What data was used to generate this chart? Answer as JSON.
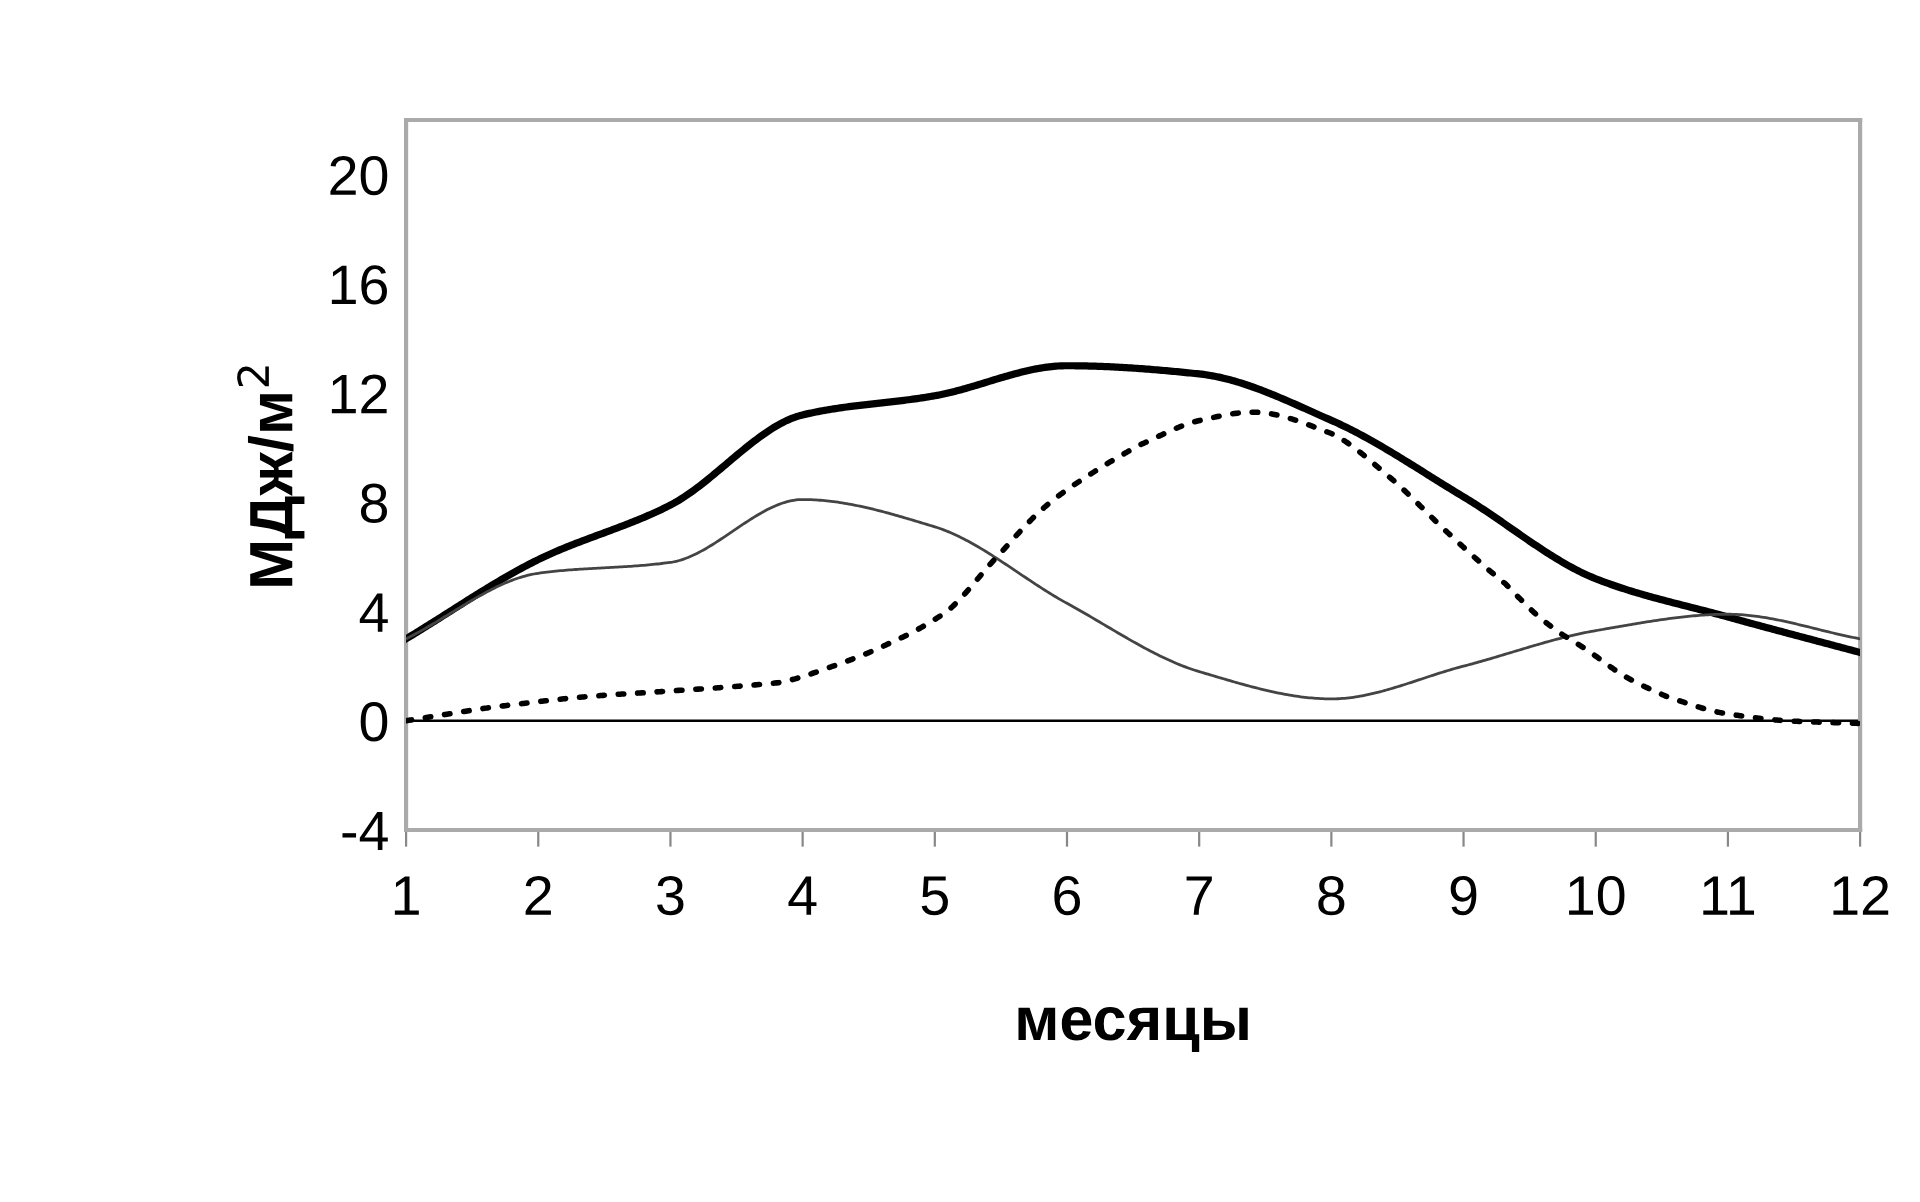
{
  "chart_data": {
    "type": "line",
    "xlabel": "месяцы",
    "ylabel": "МДж/м$^{2}$",
    "x": [
      1,
      2,
      3,
      4,
      5,
      6,
      7,
      8,
      9,
      10,
      11,
      12
    ],
    "series": [
      {
        "color": "#000000",
        "line_style": "solid",
        "values": [
          3.0,
          5.9,
          7.9,
          11.2,
          11.9,
          13.0,
          12.7,
          11.0,
          8.2,
          5.2,
          3.8,
          2.5
        ]
      },
      {
        "color": "#444444",
        "line_style": "solid",
        "values": [
          3.0,
          5.4,
          5.8,
          8.1,
          7.1,
          4.3,
          1.8,
          0.8,
          2.0,
          3.3,
          3.9,
          3.0
        ]
      },
      {
        "color": "#000000",
        "line_style": "dotted",
        "x": [
          1,
          1.66,
          2.42,
          3.02,
          3.83,
          4.23,
          4.64,
          5.09,
          5.49,
          5.85,
          6.2,
          6.55,
          7.01,
          7.41,
          8.01,
          8.47,
          8.9,
          9.32,
          9.65,
          9.93,
          10.23,
          10.53,
          10.94,
          11.44,
          12
        ],
        "values": [
          0.0,
          0.5,
          0.9,
          1.1,
          1.4,
          2.0,
          2.8,
          4.0,
          6.1,
          7.9,
          9.1,
          10.1,
          11.0,
          11.3,
          10.5,
          8.8,
          6.8,
          5.0,
          3.5,
          2.6,
          1.6,
          0.9,
          0.3,
          0.0,
          -0.1
        ]
      }
    ],
    "xlim": [
      1,
      12
    ],
    "xticks": [
      1,
      2,
      3,
      4,
      5,
      6,
      7,
      8,
      9,
      10,
      11,
      12
    ],
    "ylim": [
      -4,
      22
    ],
    "yticks": [
      -4,
      0,
      4,
      8,
      12,
      16,
      20
    ],
    "ref_lines": [
      {
        "axis": "y",
        "value": 0,
        "color": "#000000"
      }
    ],
    "grid": false,
    "legend": false,
    "marker": "none"
  }
}
